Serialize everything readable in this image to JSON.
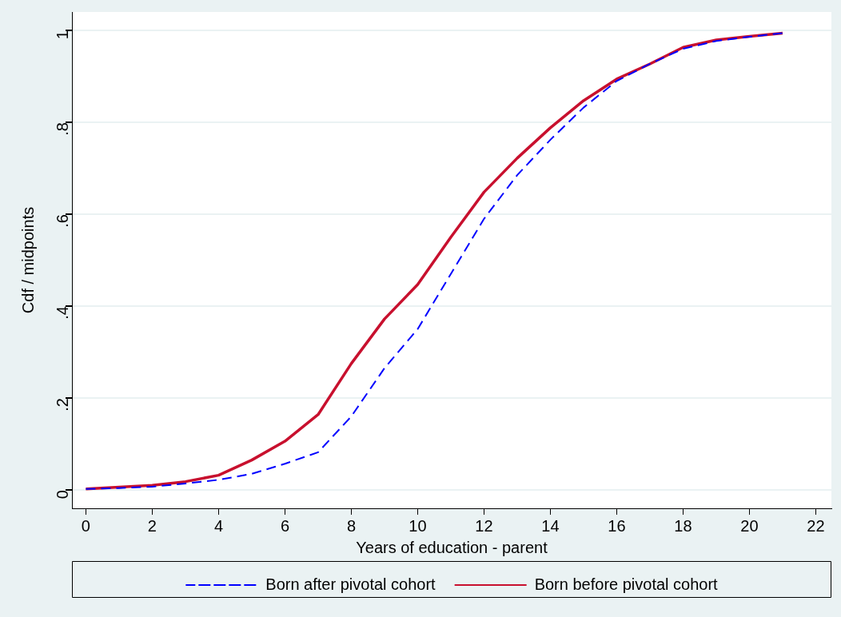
{
  "chart_data": {
    "type": "line",
    "xlabel": "Years of education - parent",
    "ylabel": "Cdf / midpoints",
    "x": [
      0,
      1,
      2,
      3,
      4,
      5,
      6,
      7,
      8,
      9,
      10,
      11,
      12,
      13,
      14,
      15,
      16,
      17,
      18,
      19,
      20,
      21
    ],
    "series": [
      {
        "name": "Born after pivotal cohort",
        "color": "#0000ff",
        "line_style": "dashed",
        "values": [
          0.002,
          0.004,
          0.007,
          0.014,
          0.022,
          0.035,
          0.057,
          0.082,
          0.16,
          0.265,
          0.35,
          0.47,
          0.59,
          0.685,
          0.762,
          0.832,
          0.89,
          0.927,
          0.96,
          0.977,
          0.986,
          0.994
        ]
      },
      {
        "name": "Born before pivotal cohort",
        "color": "#c8102e",
        "line_style": "solid",
        "values": [
          0.002,
          0.006,
          0.01,
          0.018,
          0.032,
          0.065,
          0.106,
          0.164,
          0.275,
          0.372,
          0.447,
          0.55,
          0.648,
          0.722,
          0.788,
          0.847,
          0.894,
          0.927,
          0.963,
          0.979,
          0.987,
          0.994
        ]
      }
    ],
    "xlim": [
      -0.42,
      22.47
    ],
    "xticks": [
      0,
      2,
      4,
      6,
      8,
      10,
      12,
      14,
      16,
      18,
      20,
      22
    ],
    "ylim": [
      -0.04,
      1.04
    ],
    "yticks": [
      {
        "value": 0,
        "label": "0"
      },
      {
        "value": 0.2,
        "label": ".2"
      },
      {
        "value": 0.4,
        "label": ".4"
      },
      {
        "value": 0.6,
        "label": ".6"
      },
      {
        "value": 0.8,
        "label": ".8"
      },
      {
        "value": 1,
        "label": "1"
      }
    ],
    "grid": "y",
    "legend": "bottom",
    "marker": "none"
  }
}
